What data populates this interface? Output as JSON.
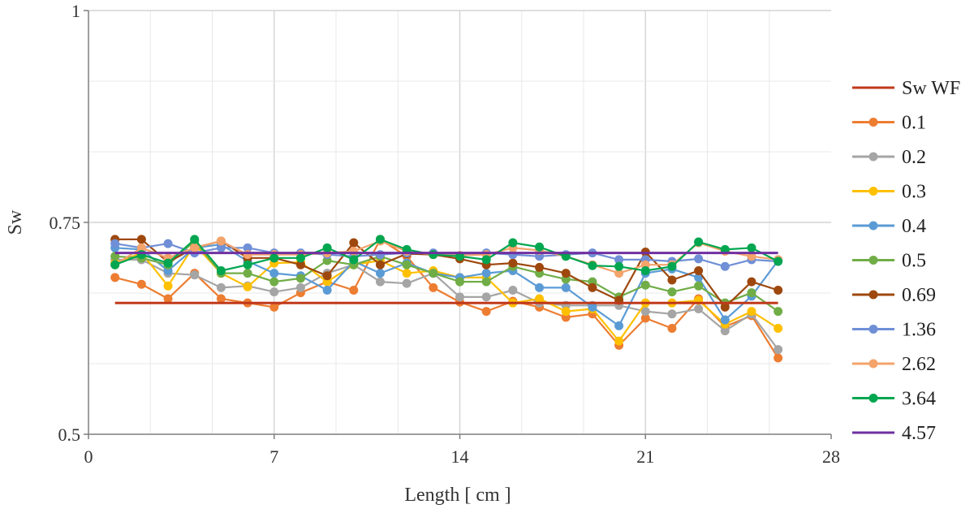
{
  "chart_data": {
    "type": "line",
    "xlabel": "Length [ cm ]",
    "ylabel": "Sw",
    "xlim": [
      0,
      28
    ],
    "ylim": [
      0.5,
      1
    ],
    "xticks": [
      0,
      7,
      14,
      21,
      28
    ],
    "yticks": [
      0.5,
      0.75,
      1
    ],
    "ytick_labels": [
      "0.5",
      "0.75",
      "1"
    ],
    "grid": true,
    "legend_position": "right",
    "x": [
      1,
      2,
      3,
      4,
      5,
      6,
      7,
      8,
      9,
      10,
      11,
      12,
      13,
      14,
      15,
      16,
      17,
      18,
      19,
      20,
      21,
      22,
      23,
      24,
      25,
      26
    ],
    "series": [
      {
        "name": "Sw WF",
        "color": "#c0391b",
        "markers": false,
        "x": [
          1,
          26
        ],
        "values": [
          0.655,
          0.655
        ]
      },
      {
        "name": "0.1",
        "color": "#ed7d31",
        "markers": true,
        "values": [
          0.685,
          0.677,
          0.66,
          0.69,
          0.66,
          0.655,
          0.65,
          0.667,
          0.68,
          0.67,
          0.73,
          0.71,
          0.673,
          0.656,
          0.645,
          0.657,
          0.65,
          0.638,
          0.642,
          0.605,
          0.637,
          0.625,
          0.66,
          0.627,
          0.64,
          0.59
        ]
      },
      {
        "name": "0.2",
        "color": "#a5a5a5",
        "markers": true,
        "values": [
          0.706,
          0.706,
          0.69,
          0.688,
          0.673,
          0.675,
          0.668,
          0.673,
          0.69,
          0.7,
          0.68,
          0.678,
          0.69,
          0.662,
          0.662,
          0.67,
          0.655,
          0.652,
          0.652,
          0.652,
          0.645,
          0.642,
          0.648,
          0.622,
          0.642,
          0.6
        ]
      },
      {
        "name": "0.3",
        "color": "#ffc000",
        "markers": true,
        "values": [
          0.702,
          0.714,
          0.675,
          0.724,
          0.69,
          0.674,
          0.702,
          0.703,
          0.68,
          0.7,
          0.705,
          0.69,
          0.693,
          0.685,
          0.685,
          0.655,
          0.66,
          0.645,
          0.648,
          0.61,
          0.655,
          0.655,
          0.658,
          0.63,
          0.645,
          0.625
        ]
      },
      {
        "name": "0.4",
        "color": "#5b9bd5",
        "markers": true,
        "values": [
          0.72,
          0.718,
          0.693,
          0.72,
          0.724,
          0.704,
          0.69,
          0.687,
          0.67,
          0.704,
          0.69,
          0.702,
          0.69,
          0.685,
          0.69,
          0.693,
          0.673,
          0.673,
          0.65,
          0.628,
          0.69,
          0.695,
          0.685,
          0.635,
          0.663,
          0.705
        ]
      },
      {
        "name": "0.5",
        "color": "#70ad47",
        "markers": true,
        "values": [
          0.71,
          0.708,
          0.7,
          0.728,
          0.69,
          0.69,
          0.68,
          0.684,
          0.705,
          0.7,
          0.71,
          0.7,
          0.69,
          0.68,
          0.68,
          0.698,
          0.69,
          0.683,
          0.68,
          0.662,
          0.676,
          0.668,
          0.675,
          0.655,
          0.667,
          0.645
        ]
      },
      {
        "name": "0.69",
        "color": "#9e480e",
        "markers": true,
        "values": [
          0.73,
          0.73,
          0.703,
          0.72,
          0.728,
          0.708,
          0.708,
          0.7,
          0.687,
          0.726,
          0.7,
          0.713,
          0.712,
          0.707,
          0.7,
          0.702,
          0.697,
          0.69,
          0.673,
          0.658,
          0.715,
          0.682,
          0.693,
          0.65,
          0.68,
          0.67
        ]
      },
      {
        "name": "1.36",
        "color": "#6f8fd6",
        "markers": true,
        "values": [
          0.725,
          0.72,
          0.725,
          0.714,
          0.72,
          0.72,
          0.714,
          0.714,
          0.712,
          0.71,
          0.712,
          0.714,
          0.714,
          0.711,
          0.714,
          0.712,
          0.71,
          0.712,
          0.714,
          0.706,
          0.706,
          0.704,
          0.707,
          0.698,
          0.706,
          0.704
        ]
      },
      {
        "name": "2.62",
        "color": "#f4a36b",
        "markers": true,
        "values": [
          0.7,
          0.72,
          0.708,
          0.72,
          0.728,
          0.712,
          0.712,
          0.712,
          0.714,
          0.716,
          0.728,
          0.716,
          0.712,
          0.711,
          0.712,
          0.72,
          0.717,
          0.71,
          0.7,
          0.69,
          0.7,
          0.7,
          0.726,
          0.716,
          0.71,
          0.706
        ]
      },
      {
        "name": "3.64",
        "color": "#00a650",
        "markers": true,
        "values": [
          0.7,
          0.712,
          0.702,
          0.73,
          0.693,
          0.7,
          0.708,
          0.708,
          0.72,
          0.706,
          0.73,
          0.718,
          0.712,
          0.71,
          0.706,
          0.726,
          0.721,
          0.71,
          0.699,
          0.698,
          0.693,
          0.698,
          0.727,
          0.718,
          0.72,
          0.704
        ]
      },
      {
        "name": "4.57",
        "color": "#7030a0",
        "markers": false,
        "x": [
          1,
          26
        ],
        "values": [
          0.714,
          0.714
        ]
      }
    ]
  }
}
